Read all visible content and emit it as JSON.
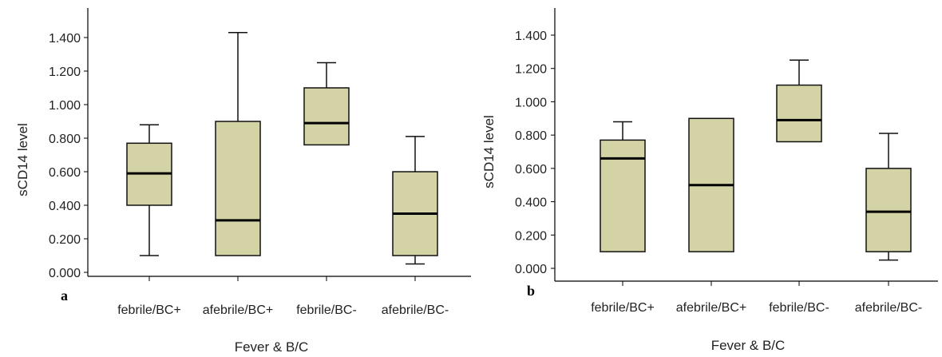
{
  "colors": {
    "box_fill": "#d4d3a6",
    "stroke": "#111111",
    "median": "#000000"
  },
  "chart_data": [
    {
      "type": "boxplot",
      "panel_label": "a",
      "xlabel": "Fever & B/C",
      "ylabel": "sCD14 level",
      "ylim": [
        0.0,
        1.5
      ],
      "yticks": [
        0.0,
        0.2,
        0.4,
        0.6,
        0.8,
        1.0,
        1.2,
        1.4
      ],
      "ytick_labels": [
        "0.000",
        "0.200",
        "0.400",
        "0.600",
        "0.800",
        "1.000",
        "1.200",
        "1.400"
      ],
      "categories": [
        "febrile/BC+",
        "afebrile/BC+",
        "febrile/BC-",
        "afebrile/BC-"
      ],
      "boxes": [
        {
          "min": 0.1,
          "q1": 0.4,
          "median": 0.59,
          "q3": 0.77,
          "max": 0.88
        },
        {
          "min": 0.1,
          "q1": 0.1,
          "median": 0.31,
          "q3": 0.9,
          "max": 1.43
        },
        {
          "min": 0.76,
          "q1": 0.76,
          "median": 0.89,
          "q3": 1.1,
          "max": 1.25
        },
        {
          "min": 0.05,
          "q1": 0.1,
          "median": 0.35,
          "q3": 0.6,
          "max": 0.81
        }
      ]
    },
    {
      "type": "boxplot",
      "panel_label": "b",
      "xlabel": "Fever & B/C",
      "ylabel": "sCD14 level",
      "ylim": [
        0.0,
        1.5
      ],
      "yticks": [
        0.0,
        0.2,
        0.4,
        0.6,
        0.8,
        1.0,
        1.2,
        1.4
      ],
      "ytick_labels": [
        "0.000",
        "0.200",
        "0.400",
        "0.600",
        "0.800",
        "1.000",
        "1.200",
        "1.400"
      ],
      "categories": [
        "febrile/BC+",
        "afebrile/BC+",
        "febrile/BC-",
        "afebrile/BC-"
      ],
      "boxes": [
        {
          "min": 0.1,
          "q1": 0.1,
          "median": 0.66,
          "q3": 0.77,
          "max": 0.88
        },
        {
          "min": 0.1,
          "q1": 0.1,
          "median": 0.5,
          "q3": 0.9,
          "max": 0.9
        },
        {
          "min": 0.76,
          "q1": 0.76,
          "median": 0.89,
          "q3": 1.1,
          "max": 1.25
        },
        {
          "min": 0.05,
          "q1": 0.1,
          "median": 0.34,
          "q3": 0.6,
          "max": 0.81
        }
      ]
    }
  ]
}
